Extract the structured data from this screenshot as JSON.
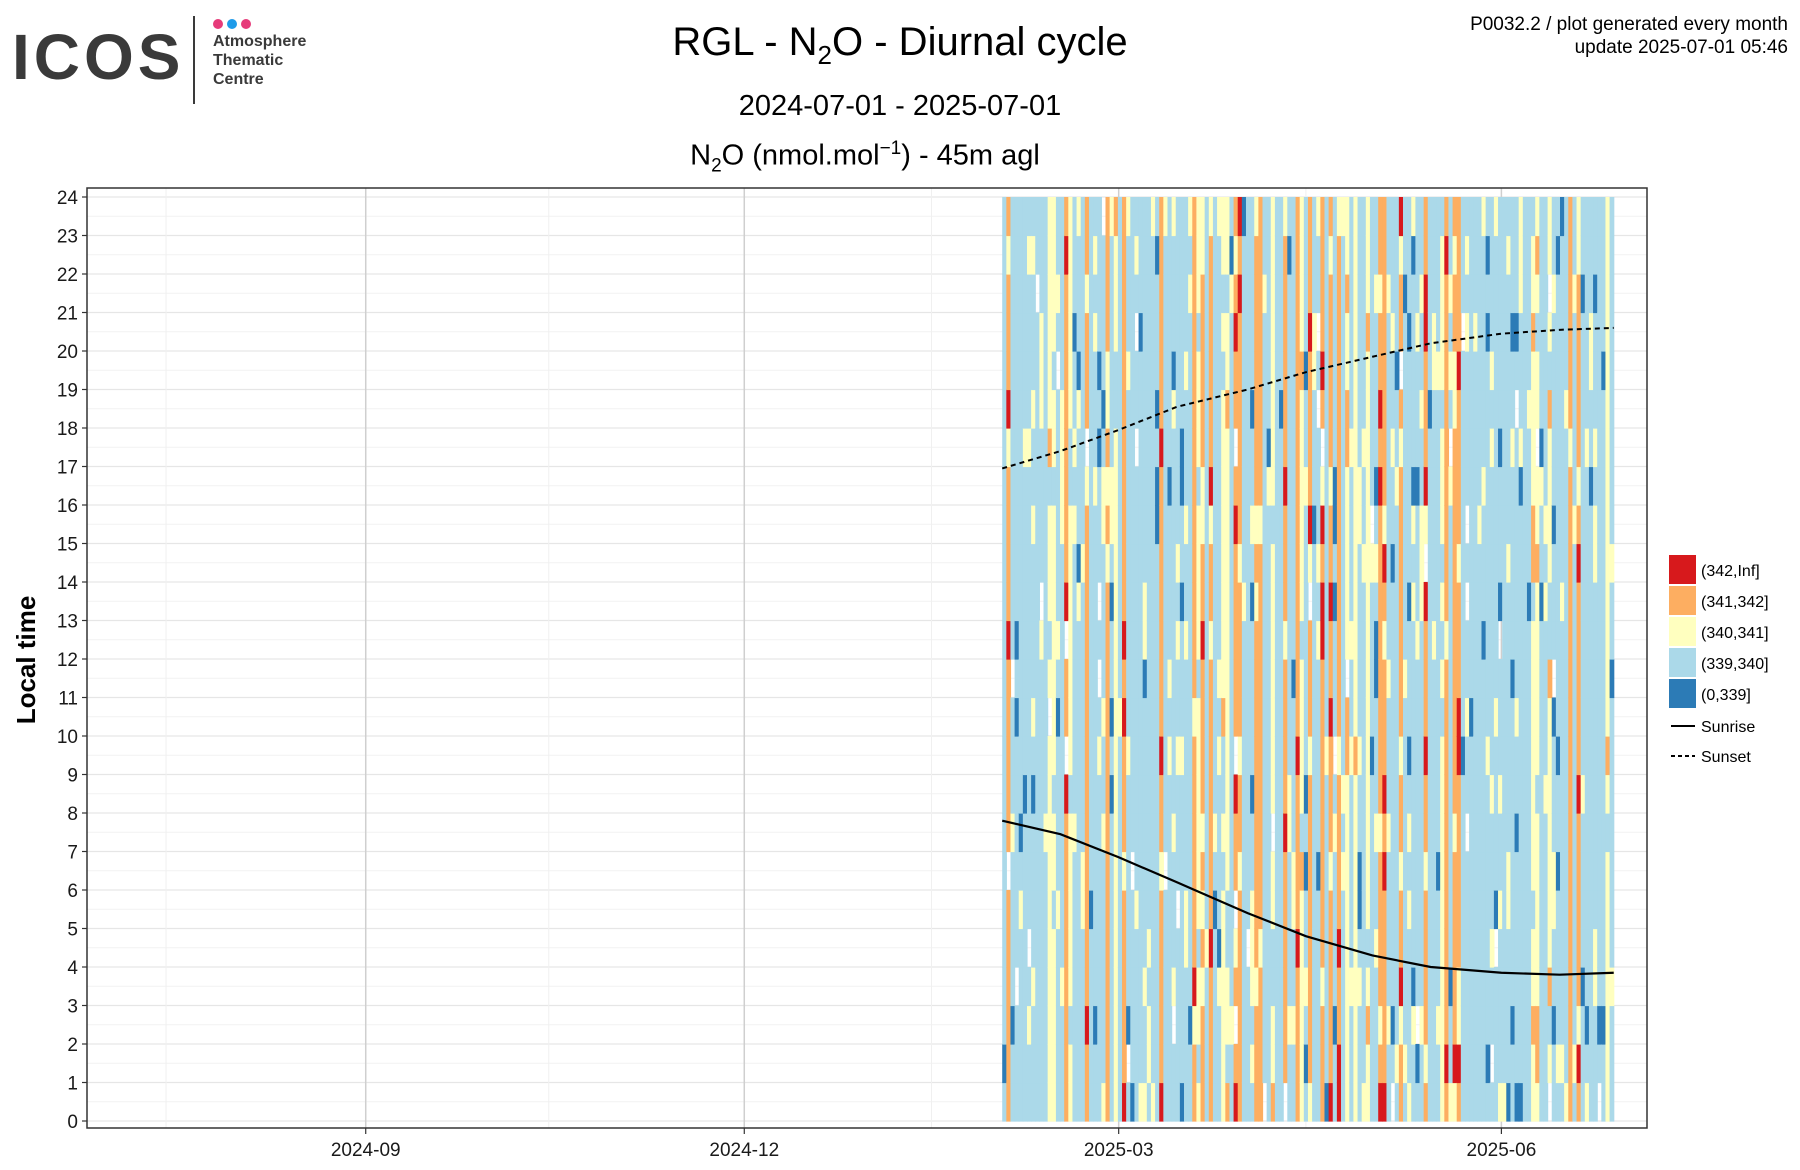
{
  "logo": {
    "wordmark": "ICOS",
    "lines": [
      "Atmosphere",
      "Thematic",
      "Centre"
    ],
    "dot_colors": [
      "#e63b7a",
      "#1e9be9",
      "#e63b7a"
    ]
  },
  "header": {
    "title_pre": "RGL - N",
    "title_sub": "2",
    "title_post": "O - Diurnal cycle",
    "date_range": "2024-07-01 - 2025-07-01",
    "unit_pre": "N",
    "unit_sub": "2",
    "unit_mid": "O (nmol.mol",
    "unit_sup": "−1",
    "unit_post": ") - 45m agl",
    "meta_line1": "P0032.2 / plot generated every month",
    "meta_line2": "update  2025-07-01 05:46"
  },
  "chart_data": {
    "type": "heatmap",
    "ylabel": "Local time",
    "y_ticks": [
      "0",
      "1",
      "2",
      "3",
      "4",
      "5",
      "6",
      "7",
      "8",
      "9",
      "10",
      "11",
      "12",
      "13",
      "14",
      "15",
      "16",
      "17",
      "18",
      "19",
      "20",
      "21",
      "22",
      "23",
      "24"
    ],
    "x_ticks": [
      {
        "label": "2024-09",
        "date": "2024-09-01"
      },
      {
        "label": "2024-12",
        "date": "2024-12-01"
      },
      {
        "label": "2025-03",
        "date": "2025-03-01"
      },
      {
        "label": "2025-06",
        "date": "2025-06-01"
      }
    ],
    "xlim": [
      "2024-06-26",
      "2025-07-06"
    ],
    "ylim": [
      0,
      24
    ],
    "data_start": "2025-02-01",
    "data_end": "2025-06-28",
    "legend_position": "right",
    "bins": [
      {
        "label": "(342,Inf]",
        "color": "#d7191c"
      },
      {
        "label": "(341,342]",
        "color": "#fdae61"
      },
      {
        "label": "(340,341]",
        "color": "#ffffbf"
      },
      {
        "label": "(339,340]",
        "color": "#abd9e9"
      },
      {
        "label": "(0,339]",
        "color": "#2c7bb6"
      }
    ],
    "sunrise": [
      {
        "date": "2025-02-01",
        "hour": 7.8
      },
      {
        "date": "2025-02-15",
        "hour": 7.45
      },
      {
        "date": "2025-03-01",
        "hour": 6.85
      },
      {
        "date": "2025-03-15",
        "hour": 6.2
      },
      {
        "date": "2025-04-01",
        "hour": 5.4
      },
      {
        "date": "2025-04-15",
        "hour": 4.8
      },
      {
        "date": "2025-05-01",
        "hour": 4.3
      },
      {
        "date": "2025-05-15",
        "hour": 4.0
      },
      {
        "date": "2025-06-01",
        "hour": 3.85
      },
      {
        "date": "2025-06-15",
        "hour": 3.8
      },
      {
        "date": "2025-06-28",
        "hour": 3.85
      }
    ],
    "sunset": [
      {
        "date": "2025-02-01",
        "hour": 16.95
      },
      {
        "date": "2025-02-15",
        "hour": 17.4
      },
      {
        "date": "2025-03-01",
        "hour": 17.95
      },
      {
        "date": "2025-03-15",
        "hour": 18.55
      },
      {
        "date": "2025-04-01",
        "hour": 19.0
      },
      {
        "date": "2025-04-15",
        "hour": 19.45
      },
      {
        "date": "2025-05-01",
        "hour": 19.85
      },
      {
        "date": "2025-05-15",
        "hour": 20.2
      },
      {
        "date": "2025-06-01",
        "hour": 20.45
      },
      {
        "date": "2025-06-15",
        "hour": 20.55
      },
      {
        "date": "2025-06-28",
        "hour": 20.6
      }
    ],
    "line_legend": [
      {
        "label": "Sunrise",
        "dash": "solid"
      },
      {
        "label": "Sunset",
        "dash": "dashed"
      }
    ]
  }
}
